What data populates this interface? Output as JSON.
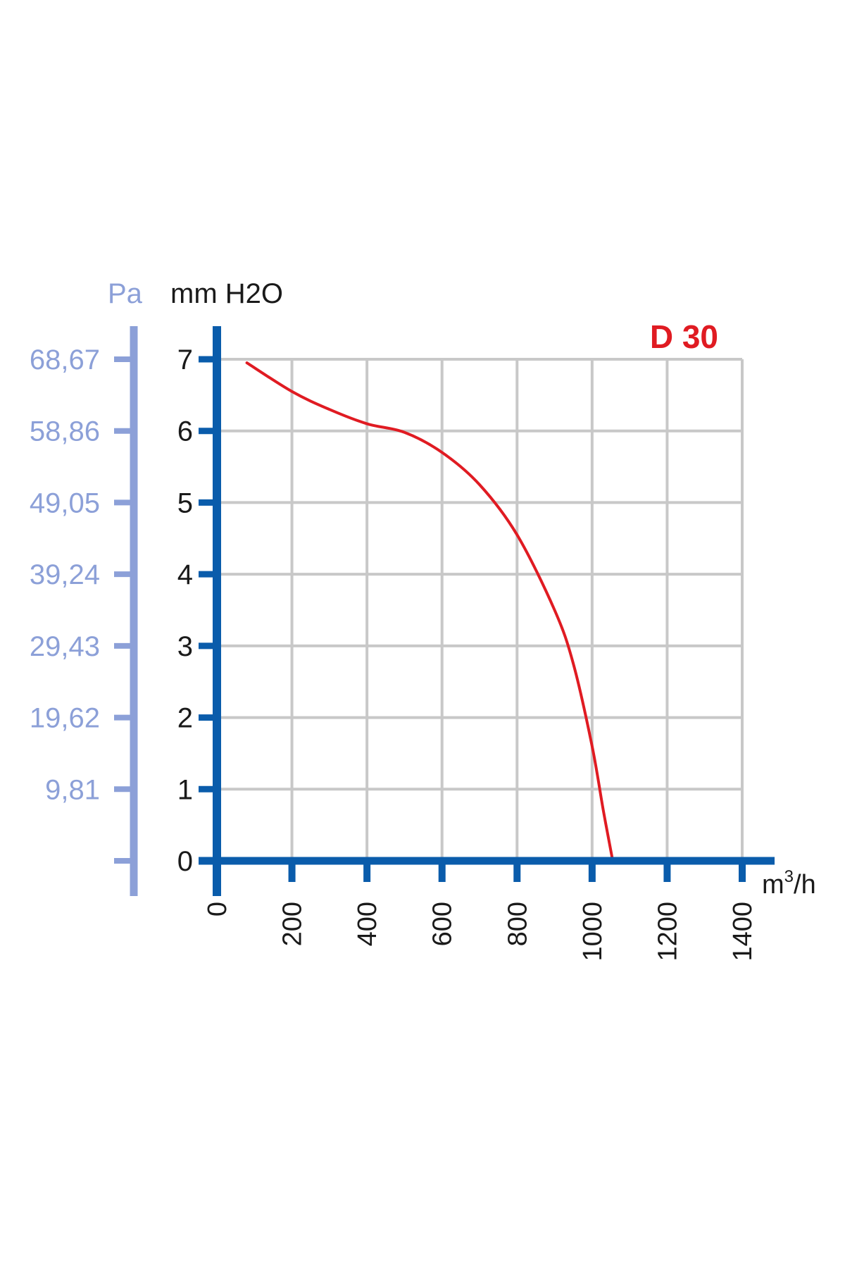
{
  "chart_data": {
    "type": "line",
    "title": "D 30",
    "title_color": "#e01b22",
    "axis_color": "#0a5cab",
    "secondary_axis_color": "#8ca0d8",
    "grid_color": "#c8c8c8",
    "grid": true,
    "xlabel_base": "m",
    "xlabel_sup": "3",
    "xlabel_rest": "/h",
    "ylabel": "mm H2O",
    "ylabel_secondary": "Pa",
    "xlim": [
      0,
      1400
    ],
    "ylim": [
      0,
      7
    ],
    "x_ticks": [
      "0",
      "200",
      "400",
      "600",
      "800",
      "1000",
      "1200",
      "1400"
    ],
    "y_ticks": [
      "0",
      "1",
      "2",
      "3",
      "4",
      "5",
      "6",
      "7"
    ],
    "y_secondary_ticks": [
      "",
      "9,81",
      "19,62",
      "29,43",
      "39,24",
      "49,05",
      "58,86",
      "68,67"
    ],
    "series": [
      {
        "color": "#e01b22",
        "x": [
          80,
          200,
          300,
          400,
          500,
          600,
          700,
          800,
          900,
          950,
          1000,
          1030,
          1055
        ],
        "y": [
          6.95,
          6.55,
          6.3,
          6.1,
          5.98,
          5.7,
          5.25,
          4.55,
          3.5,
          2.75,
          1.6,
          0.7,
          0.0
        ]
      }
    ]
  }
}
